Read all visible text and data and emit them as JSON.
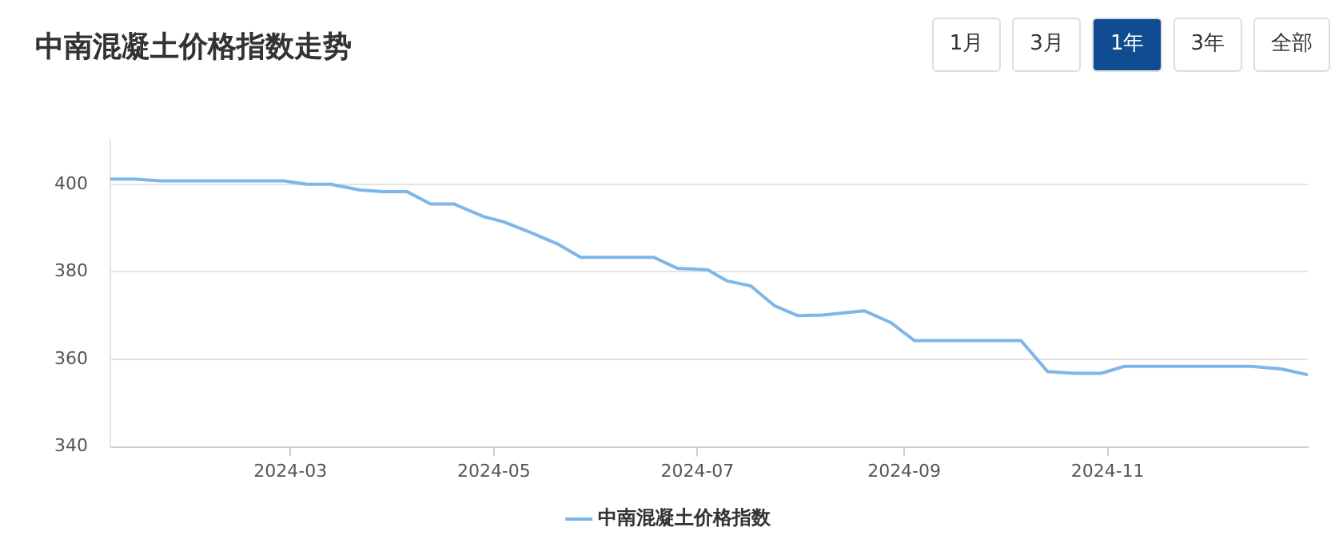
{
  "chart_data": {
    "type": "line",
    "title": "中南混凝土价格指数走势",
    "annotations": [
      "1月",
      "3月",
      "1年",
      "3年",
      "全部"
    ],
    "x": [
      "2024-01-07",
      "2024-01-14",
      "2024-01-22",
      "2024-02-28",
      "2024-03-06",
      "2024-03-13",
      "2024-03-22",
      "2024-03-29",
      "2024-04-05",
      "2024-04-12",
      "2024-04-19",
      "2024-04-28",
      "2024-05-04",
      "2024-05-12",
      "2024-05-20",
      "2024-05-27",
      "2024-06-18",
      "2024-06-25",
      "2024-07-04",
      "2024-07-10",
      "2024-07-17",
      "2024-07-24",
      "2024-07-31",
      "2024-08-07",
      "2024-08-20",
      "2024-08-28",
      "2024-09-04",
      "2024-10-06",
      "2024-10-14",
      "2024-10-22",
      "2024-10-30",
      "2024-11-06",
      "2024-12-14",
      "2024-12-23",
      "2024-12-31"
    ],
    "series": [
      {
        "name": "中南混凝土价格指数",
        "color": "#7eb6ea",
        "values": [
          401.2,
          401.2,
          400.8,
          400.8,
          400,
          400,
          398.7,
          398.3,
          398.3,
          395.5,
          395.5,
          392.6,
          391.4,
          389,
          386.4,
          383.3,
          383.3,
          380.8,
          380.5,
          377.9,
          376.8,
          372.3,
          370,
          370.1,
          371.1,
          368.4,
          364.3,
          364.3,
          357.2,
          356.8,
          356.8,
          358.4,
          358.4,
          357.8,
          356.5
        ]
      }
    ],
    "xlim": [
      "2024-01-07",
      "2024-12-31"
    ],
    "xticks": [
      "2024-03",
      "2024-05",
      "2024-07",
      "2024-09",
      "2024-11"
    ],
    "ylim": [
      340,
      410
    ],
    "yticks": [
      340,
      360,
      380,
      400
    ],
    "grid": "y",
    "legend": "bottom",
    "marker": "none",
    "line_style": "solid"
  }
}
